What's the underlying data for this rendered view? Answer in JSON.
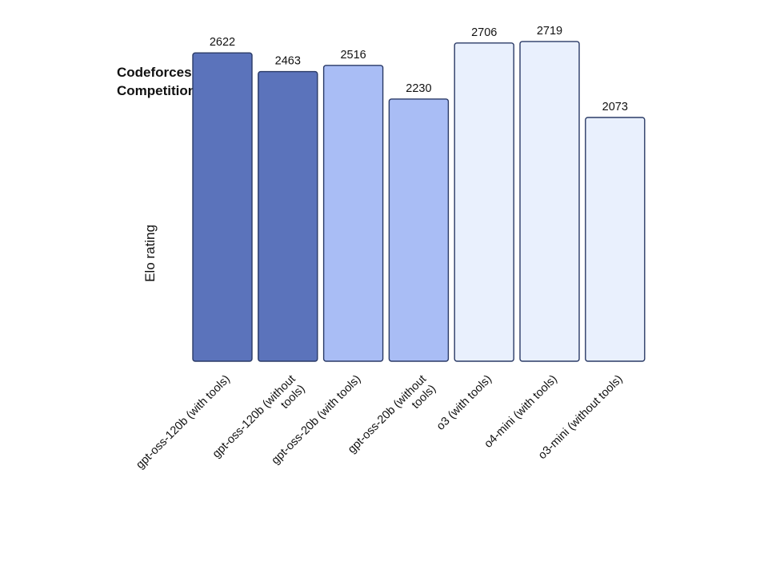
{
  "chart_data": {
    "type": "bar",
    "title": "Codeforces",
    "subtitle": "Competition code",
    "xlabel": "",
    "ylabel": "Elo rating",
    "ylim": [
      0,
      2800
    ],
    "grid": false,
    "categories": [
      "gpt-oss-120b (with tools)",
      "gpt-oss-120b (without tools)",
      "gpt-oss-20b (with tools)",
      "gpt-oss-20b (without tools)",
      "o3 (with tools)",
      "o4-mini (with tools)",
      "o3-mini (without tools)"
    ],
    "category_lines": [
      [
        "gpt-oss-120b (with tools)"
      ],
      [
        "gpt-oss-120b (without",
        "tools)"
      ],
      [
        "gpt-oss-20b (with tools)"
      ],
      [
        "gpt-oss-20b (without",
        "tools)"
      ],
      [
        "o3 (with tools)"
      ],
      [
        "o4-mini (with tools)"
      ],
      [
        "o3-mini (without tools)"
      ]
    ],
    "values": [
      2622,
      2463,
      2516,
      2230,
      2706,
      2719,
      2073
    ],
    "value_labels": [
      "2622",
      "2463",
      "2516",
      "2230",
      "2706",
      "2719",
      "2073"
    ],
    "colors": [
      "#5b73bb",
      "#5b73bb",
      "#a9bdf5",
      "#a9bdf5",
      "#e9f0fd",
      "#e9f0fd",
      "#e9f0fd"
    ],
    "bar_edge_color": "#2a3a66"
  }
}
